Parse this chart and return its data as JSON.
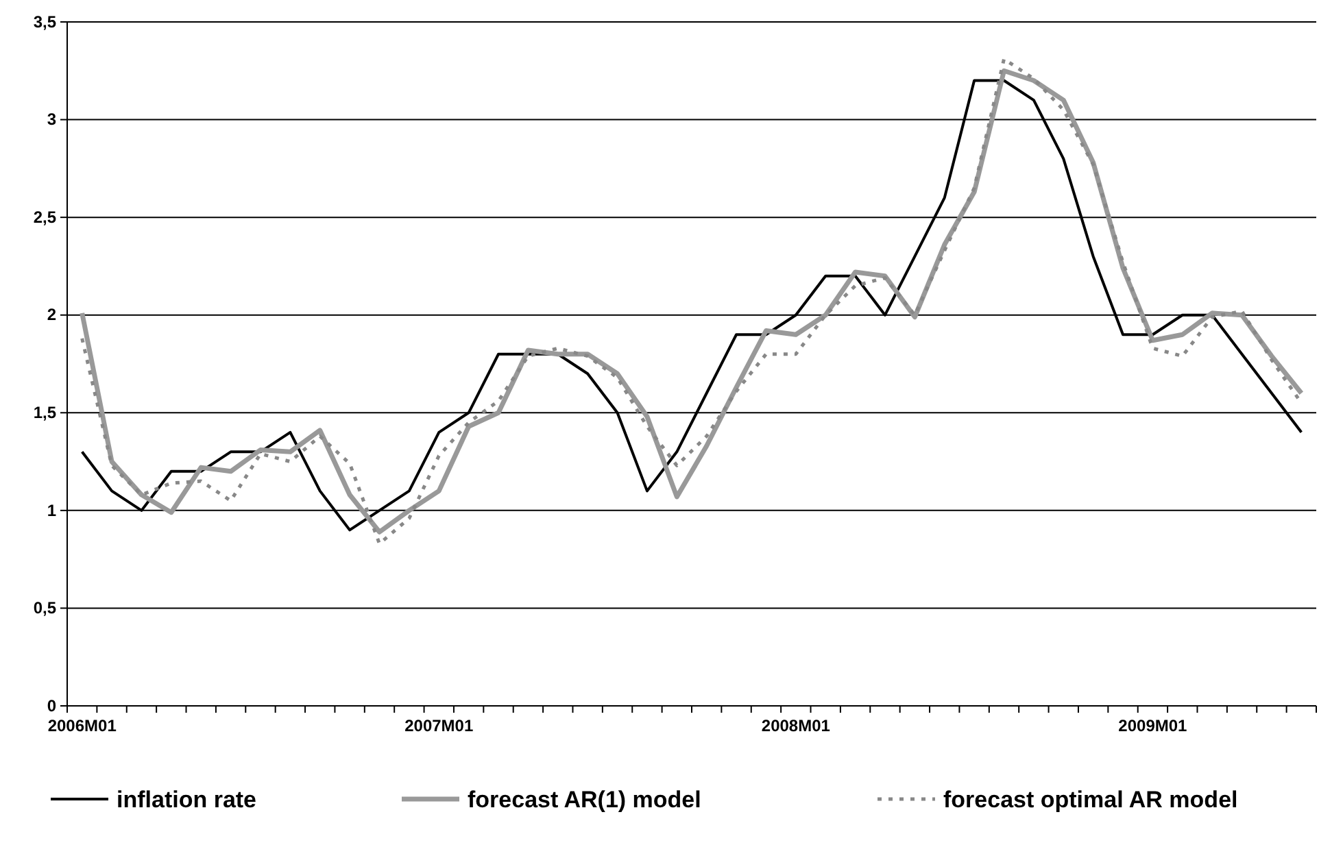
{
  "chart_data": {
    "type": "line",
    "categories": [
      "2006M01",
      null,
      null,
      null,
      null,
      null,
      null,
      null,
      null,
      null,
      null,
      null,
      "2007M01",
      null,
      null,
      null,
      null,
      null,
      null,
      null,
      null,
      null,
      null,
      null,
      "2008M01",
      null,
      null,
      null,
      null,
      null,
      null,
      null,
      null,
      null,
      null,
      null,
      "2009M01",
      null,
      null,
      null,
      null,
      null
    ],
    "series": [
      {
        "name": "inflation rate",
        "color": "#000000",
        "line_style": "solid",
        "values": [
          1.3,
          1.1,
          1.0,
          1.2,
          1.2,
          1.3,
          1.3,
          1.4,
          1.1,
          0.9,
          1.0,
          1.1,
          1.4,
          1.5,
          1.8,
          1.8,
          1.8,
          1.7,
          1.5,
          1.1,
          1.3,
          1.6,
          1.9,
          1.9,
          2.0,
          2.2,
          2.2,
          2.0,
          2.3,
          2.6,
          3.2,
          3.2,
          3.1,
          2.8,
          2.3,
          1.9,
          1.9,
          2.0,
          2.0,
          1.8,
          1.6,
          1.4
        ]
      },
      {
        "name": "forecast AR(1) model",
        "color": "#999999",
        "line_style": "solid",
        "values": [
          2.01,
          1.25,
          1.08,
          0.99,
          1.22,
          1.2,
          1.31,
          1.3,
          1.41,
          1.08,
          0.89,
          1.0,
          1.1,
          1.43,
          1.5,
          1.82,
          1.8,
          1.8,
          1.7,
          1.48,
          1.07,
          1.33,
          1.63,
          1.92,
          1.9,
          2.0,
          2.22,
          2.2,
          1.99,
          2.36,
          2.63,
          3.25,
          3.2,
          3.1,
          2.78,
          2.24,
          1.87,
          1.9,
          2.01,
          2.0,
          1.79,
          1.6
        ]
      },
      {
        "name": "forecast optimal AR model",
        "color": "#888888",
        "line_style": "dashed",
        "values": [
          1.88,
          1.23,
          1.08,
          1.14,
          1.15,
          1.05,
          1.29,
          1.25,
          1.38,
          1.24,
          0.83,
          0.96,
          1.28,
          1.45,
          1.56,
          1.79,
          1.83,
          1.79,
          1.68,
          1.43,
          1.23,
          1.38,
          1.61,
          1.8,
          1.8,
          2.0,
          2.15,
          2.19,
          2.0,
          2.33,
          2.65,
          3.31,
          3.21,
          3.05,
          2.77,
          2.27,
          1.83,
          1.79,
          1.99,
          2.02,
          1.77,
          1.55
        ]
      }
    ],
    "ylim": [
      0,
      3.5
    ],
    "yticks": [
      0,
      {
        "value": 0.5,
        "label": "0,5"
      },
      1,
      {
        "value": 1.5,
        "label": "1,5"
      },
      2,
      {
        "value": 2.5,
        "label": "2,5"
      },
      3,
      {
        "value": 3.5,
        "label": "3,5"
      }
    ],
    "grid": "y",
    "legend": "bottom",
    "marker": "none"
  }
}
